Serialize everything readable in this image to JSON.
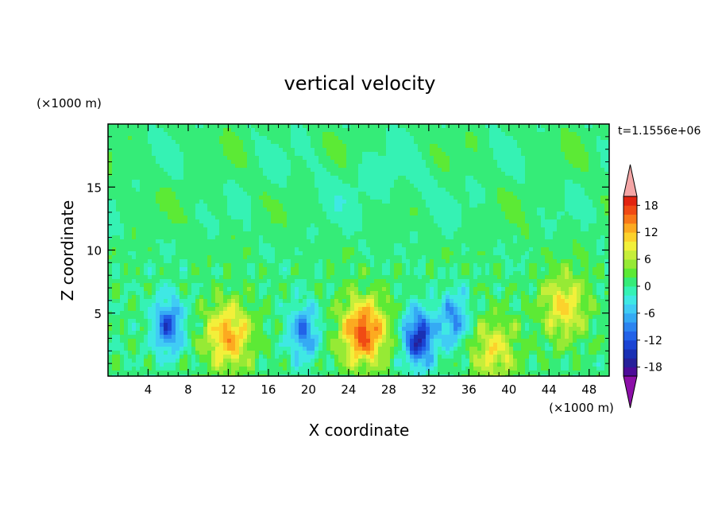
{
  "chart_data": {
    "type": "heatmap",
    "title": "vertical velocity",
    "xlabel": "X coordinate",
    "ylabel": "Z coordinate",
    "x_unit": "(×1000 m)",
    "y_unit": "(×1000 m)",
    "time_label": "t=1.1556e+06",
    "xlim": [
      0,
      50
    ],
    "ylim": [
      0,
      20
    ],
    "x_ticks": [
      4,
      8,
      12,
      16,
      20,
      24,
      28,
      32,
      36,
      40,
      44,
      48
    ],
    "y_ticks": [
      5,
      10,
      15
    ],
    "colorbar": {
      "levels": [
        -20,
        -18,
        -16,
        -14,
        -12,
        -10,
        -8,
        -6,
        -4,
        -2,
        0,
        2,
        4,
        6,
        8,
        10,
        12,
        14,
        16,
        18,
        20
      ],
      "tick_labels": [
        "18",
        "12",
        "6",
        "0",
        "-6",
        "-12",
        "-18"
      ],
      "tick_values": [
        18,
        12,
        6,
        0,
        -6,
        -12,
        -18
      ],
      "colors": [
        "#4d0b98",
        "#27209a",
        "#1a30b4",
        "#1b44d4",
        "#2262e8",
        "#2c84f0",
        "#35aaf4",
        "#40ccf4",
        "#3fe8e4",
        "#35f2b4",
        "#35ec78",
        "#5cea35",
        "#96ea35",
        "#c6ee3a",
        "#f2f03a",
        "#fcd22c",
        "#fcaa20",
        "#f87818",
        "#f04a14",
        "#e22410"
      ],
      "over_color": "#f4a6a6",
      "under_color": "#8c0fa8"
    },
    "features": [
      {
        "x": 12,
        "z": 3.2,
        "value": 12,
        "kind": "updraft"
      },
      {
        "x": 25.5,
        "z": 3.5,
        "value": 16,
        "kind": "updraft"
      },
      {
        "x": 38.5,
        "z": 2,
        "value": 8,
        "kind": "updraft"
      },
      {
        "x": 45.5,
        "z": 5.5,
        "value": 9,
        "kind": "updraft"
      },
      {
        "x": 6,
        "z": 4,
        "value": -12,
        "kind": "downdraft"
      },
      {
        "x": 19.5,
        "z": 3.5,
        "value": -10,
        "kind": "downdraft"
      },
      {
        "x": 31,
        "z": 3,
        "value": -16,
        "kind": "downdraft"
      },
      {
        "x": 34.5,
        "z": 4.5,
        "value": -9,
        "kind": "downdraft"
      }
    ]
  }
}
